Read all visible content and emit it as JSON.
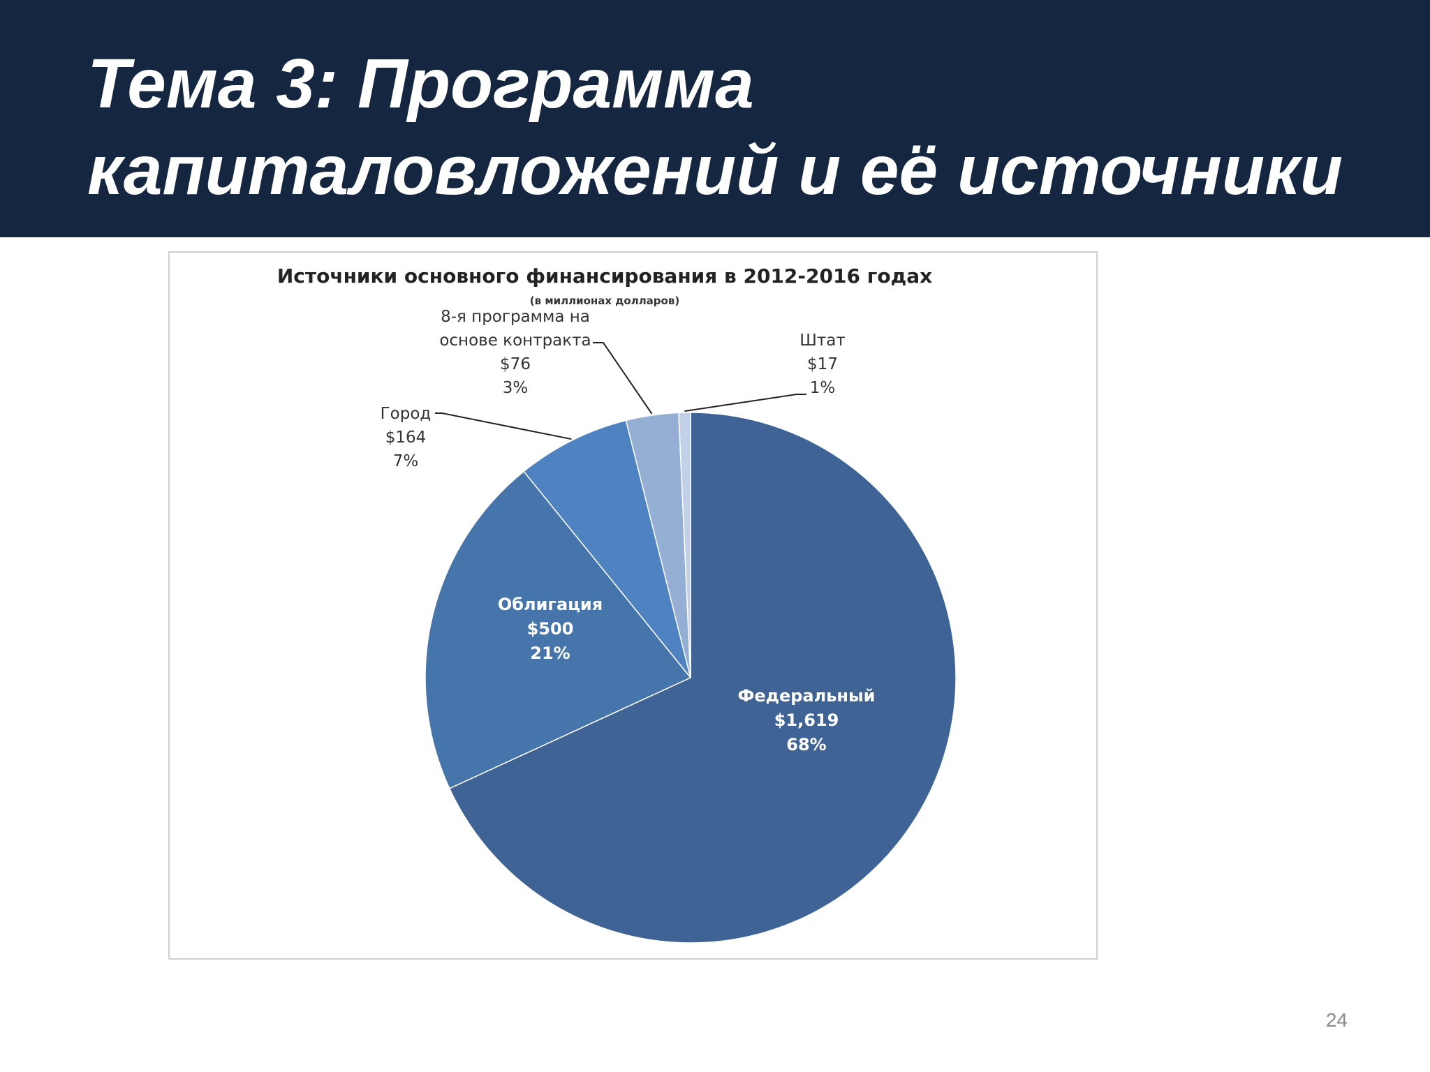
{
  "slide": {
    "title_line1": "Тема 3: Программа",
    "title_line2": "капиталовложений и её источники",
    "page_number": "24"
  },
  "colors": {
    "header_bg": "#152640",
    "federal": "#3e6394",
    "bond": "#4675ab",
    "city": "#4f82c0",
    "contract": "#95aed3",
    "state": "#c2d1e8"
  },
  "chart_data": {
    "type": "pie",
    "title": "Источники основного финансирования в 2012-2016 годах",
    "subtitle": "(в миллионах долларов)",
    "unit": "$",
    "slices": [
      {
        "name": "Федеральный",
        "value": 1619,
        "value_label": "$1,619",
        "percent": 68,
        "percent_label": "68%"
      },
      {
        "name": "Облигация",
        "value": 500,
        "value_label": "$500",
        "percent": 21,
        "percent_label": "21%"
      },
      {
        "name": "Город",
        "value": 164,
        "value_label": "$164",
        "percent": 7,
        "percent_label": "7%"
      },
      {
        "name_lines": [
          "8-я программа на",
          "основе контракта"
        ],
        "value": 76,
        "value_label": "$76",
        "percent": 3,
        "percent_label": "3%"
      },
      {
        "name": "Штат",
        "value": 17,
        "value_label": "$17",
        "percent": 1,
        "percent_label": "1%"
      }
    ]
  }
}
